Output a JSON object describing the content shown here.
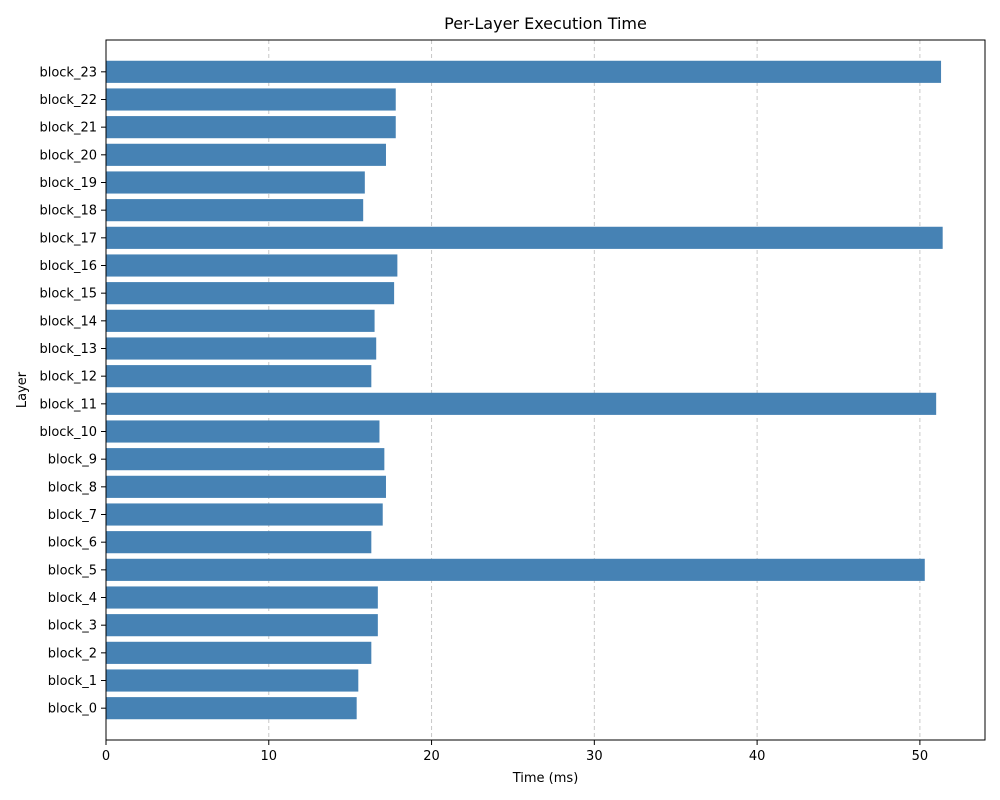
{
  "chart_data": {
    "type": "bar",
    "orientation": "horizontal",
    "title": "Per-Layer Execution Time",
    "xlabel": "Time (ms)",
    "ylabel": "Layer",
    "categories": [
      "block_0",
      "block_1",
      "block_2",
      "block_3",
      "block_4",
      "block_5",
      "block_6",
      "block_7",
      "block_8",
      "block_9",
      "block_10",
      "block_11",
      "block_12",
      "block_13",
      "block_14",
      "block_15",
      "block_16",
      "block_17",
      "block_18",
      "block_19",
      "block_20",
      "block_21",
      "block_22",
      "block_23"
    ],
    "values": [
      15.4,
      15.5,
      16.3,
      16.7,
      16.7,
      50.3,
      16.3,
      17.0,
      17.2,
      17.1,
      16.8,
      51.0,
      16.3,
      16.6,
      16.5,
      17.7,
      17.9,
      51.4,
      15.8,
      15.9,
      17.2,
      17.8,
      17.8,
      51.3
    ],
    "xlim": [
      0,
      54
    ],
    "xticks": [
      0,
      10,
      20,
      30,
      40,
      50
    ],
    "grid": "x-dashed",
    "bar_color": "#4682b4",
    "grid_color": "#c8c8c8"
  }
}
